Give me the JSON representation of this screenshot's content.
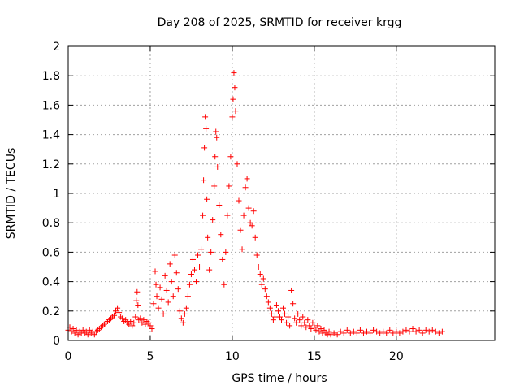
{
  "chart_data": {
    "type": "scatter",
    "title": "Day 208 of 2025, SRMTID for receiver krgg",
    "xlabel": "GPS time / hours",
    "ylabel": "SRMTID / TECUs",
    "xlim": [
      0,
      26
    ],
    "ylim": [
      0,
      2
    ],
    "xticks": [
      0,
      5,
      10,
      15,
      20
    ],
    "yticks": [
      0,
      0.2,
      0.4,
      0.6,
      0.8,
      1,
      1.2,
      1.4,
      1.6,
      1.8,
      2
    ],
    "ytick_labels": [
      "0",
      "0.2",
      "0.4",
      "0.6",
      "0.8",
      "1",
      "1.2",
      "1.4",
      "1.6",
      "1.8",
      "2"
    ],
    "xtick_labels": [
      "0",
      "5",
      "10",
      "15",
      "20"
    ],
    "grid": true,
    "marker": "+",
    "series": [
      {
        "name": "SRMTID",
        "color": "#ff0000",
        "points": [
          [
            0.0,
            0.07
          ],
          [
            0.1,
            0.09
          ],
          [
            0.2,
            0.06
          ],
          [
            0.3,
            0.08
          ],
          [
            0.4,
            0.05
          ],
          [
            0.5,
            0.07
          ],
          [
            0.6,
            0.04
          ],
          [
            0.7,
            0.06
          ],
          [
            0.8,
            0.05
          ],
          [
            0.9,
            0.07
          ],
          [
            1.0,
            0.05
          ],
          [
            1.1,
            0.06
          ],
          [
            1.2,
            0.04
          ],
          [
            1.3,
            0.07
          ],
          [
            1.4,
            0.05
          ],
          [
            1.5,
            0.06
          ],
          [
            1.6,
            0.04
          ],
          [
            1.7,
            0.06
          ],
          [
            1.8,
            0.07
          ],
          [
            1.9,
            0.08
          ],
          [
            2.0,
            0.09
          ],
          [
            2.1,
            0.1
          ],
          [
            2.2,
            0.11
          ],
          [
            2.3,
            0.12
          ],
          [
            2.4,
            0.13
          ],
          [
            2.5,
            0.14
          ],
          [
            2.6,
            0.15
          ],
          [
            2.7,
            0.16
          ],
          [
            2.8,
            0.17
          ],
          [
            2.9,
            0.2
          ],
          [
            3.0,
            0.22
          ],
          [
            3.1,
            0.19
          ],
          [
            3.2,
            0.16
          ],
          [
            3.3,
            0.15
          ],
          [
            3.4,
            0.13
          ],
          [
            3.5,
            0.14
          ],
          [
            3.6,
            0.12
          ],
          [
            3.7,
            0.11
          ],
          [
            3.8,
            0.13
          ],
          [
            3.9,
            0.1
          ],
          [
            4.0,
            0.12
          ],
          [
            4.1,
            0.16
          ],
          [
            4.15,
            0.27
          ],
          [
            4.2,
            0.33
          ],
          [
            4.25,
            0.24
          ],
          [
            4.3,
            0.14
          ],
          [
            4.4,
            0.15
          ],
          [
            4.5,
            0.12
          ],
          [
            4.6,
            0.14
          ],
          [
            4.7,
            0.11
          ],
          [
            4.8,
            0.13
          ],
          [
            4.9,
            0.12
          ],
          [
            5.0,
            0.1
          ],
          [
            5.1,
            0.08
          ],
          [
            5.2,
            0.25
          ],
          [
            5.3,
            0.47
          ],
          [
            5.35,
            0.38
          ],
          [
            5.4,
            0.3
          ],
          [
            5.5,
            0.22
          ],
          [
            5.6,
            0.36
          ],
          [
            5.7,
            0.28
          ],
          [
            5.8,
            0.18
          ],
          [
            5.9,
            0.44
          ],
          [
            6.0,
            0.34
          ],
          [
            6.1,
            0.26
          ],
          [
            6.2,
            0.52
          ],
          [
            6.3,
            0.4
          ],
          [
            6.4,
            0.3
          ],
          [
            6.5,
            0.58
          ],
          [
            6.6,
            0.46
          ],
          [
            6.7,
            0.35
          ],
          [
            6.8,
            0.2
          ],
          [
            6.9,
            0.15
          ],
          [
            7.0,
            0.12
          ],
          [
            7.1,
            0.18
          ],
          [
            7.2,
            0.22
          ],
          [
            7.3,
            0.3
          ],
          [
            7.4,
            0.38
          ],
          [
            7.5,
            0.45
          ],
          [
            7.6,
            0.55
          ],
          [
            7.7,
            0.48
          ],
          [
            7.8,
            0.4
          ],
          [
            7.9,
            0.58
          ],
          [
            8.0,
            0.5
          ],
          [
            8.1,
            0.62
          ],
          [
            8.2,
            0.85
          ],
          [
            8.25,
            1.09
          ],
          [
            8.3,
            1.31
          ],
          [
            8.35,
            1.52
          ],
          [
            8.4,
            1.44
          ],
          [
            8.45,
            0.96
          ],
          [
            8.5,
            0.7
          ],
          [
            8.6,
            0.48
          ],
          [
            8.7,
            0.6
          ],
          [
            8.8,
            0.82
          ],
          [
            8.9,
            1.05
          ],
          [
            8.95,
            1.25
          ],
          [
            9.0,
            1.42
          ],
          [
            9.05,
            1.38
          ],
          [
            9.1,
            1.18
          ],
          [
            9.2,
            0.92
          ],
          [
            9.3,
            0.72
          ],
          [
            9.4,
            0.55
          ],
          [
            9.5,
            0.38
          ],
          [
            9.6,
            0.6
          ],
          [
            9.7,
            0.85
          ],
          [
            9.8,
            1.05
          ],
          [
            9.9,
            1.25
          ],
          [
            10.0,
            1.52
          ],
          [
            10.05,
            1.64
          ],
          [
            10.1,
            1.82
          ],
          [
            10.15,
            1.72
          ],
          [
            10.2,
            1.56
          ],
          [
            10.3,
            1.2
          ],
          [
            10.4,
            0.95
          ],
          [
            10.5,
            0.75
          ],
          [
            10.6,
            0.62
          ],
          [
            10.7,
            0.85
          ],
          [
            10.8,
            1.04
          ],
          [
            10.9,
            1.1
          ],
          [
            11.0,
            0.9
          ],
          [
            11.1,
            0.8
          ],
          [
            11.2,
            0.78
          ],
          [
            11.3,
            0.88
          ],
          [
            11.4,
            0.7
          ],
          [
            11.5,
            0.58
          ],
          [
            11.6,
            0.5
          ],
          [
            11.7,
            0.45
          ],
          [
            11.8,
            0.38
          ],
          [
            11.9,
            0.42
          ],
          [
            12.0,
            0.35
          ],
          [
            12.1,
            0.3
          ],
          [
            12.2,
            0.26
          ],
          [
            12.3,
            0.22
          ],
          [
            12.4,
            0.18
          ],
          [
            12.5,
            0.14
          ],
          [
            12.6,
            0.16
          ],
          [
            12.7,
            0.24
          ],
          [
            12.8,
            0.2
          ],
          [
            12.9,
            0.16
          ],
          [
            13.0,
            0.14
          ],
          [
            13.1,
            0.22
          ],
          [
            13.2,
            0.18
          ],
          [
            13.3,
            0.12
          ],
          [
            13.4,
            0.16
          ],
          [
            13.5,
            0.1
          ],
          [
            13.6,
            0.34
          ],
          [
            13.7,
            0.25
          ],
          [
            13.8,
            0.15
          ],
          [
            13.9,
            0.12
          ],
          [
            14.0,
            0.18
          ],
          [
            14.1,
            0.14
          ],
          [
            14.2,
            0.1
          ],
          [
            14.3,
            0.16
          ],
          [
            14.4,
            0.12
          ],
          [
            14.5,
            0.09
          ],
          [
            14.6,
            0.14
          ],
          [
            14.7,
            0.1
          ],
          [
            14.8,
            0.08
          ],
          [
            14.9,
            0.12
          ],
          [
            15.0,
            0.09
          ],
          [
            15.1,
            0.07
          ],
          [
            15.2,
            0.1
          ],
          [
            15.3,
            0.06
          ],
          [
            15.4,
            0.08
          ],
          [
            15.5,
            0.05
          ],
          [
            15.6,
            0.07
          ],
          [
            15.7,
            0.05
          ],
          [
            15.8,
            0.04
          ],
          [
            15.9,
            0.06
          ],
          [
            16.0,
            0.04
          ],
          [
            16.2,
            0.05
          ],
          [
            16.4,
            0.04
          ],
          [
            16.6,
            0.06
          ],
          [
            16.8,
            0.05
          ],
          [
            17.0,
            0.07
          ],
          [
            17.2,
            0.05
          ],
          [
            17.4,
            0.06
          ],
          [
            17.6,
            0.05
          ],
          [
            17.8,
            0.07
          ],
          [
            18.0,
            0.05
          ],
          [
            18.2,
            0.06
          ],
          [
            18.4,
            0.05
          ],
          [
            18.6,
            0.07
          ],
          [
            18.8,
            0.06
          ],
          [
            19.0,
            0.05
          ],
          [
            19.2,
            0.06
          ],
          [
            19.4,
            0.05
          ],
          [
            19.6,
            0.07
          ],
          [
            19.8,
            0.05
          ],
          [
            20.0,
            0.06
          ],
          [
            20.2,
            0.05
          ],
          [
            20.4,
            0.06
          ],
          [
            20.6,
            0.07
          ],
          [
            20.8,
            0.06
          ],
          [
            21.0,
            0.08
          ],
          [
            21.2,
            0.06
          ],
          [
            21.4,
            0.07
          ],
          [
            21.6,
            0.05
          ],
          [
            21.8,
            0.07
          ],
          [
            22.0,
            0.06
          ],
          [
            22.2,
            0.07
          ],
          [
            22.4,
            0.06
          ],
          [
            22.6,
            0.05
          ],
          [
            22.8,
            0.06
          ]
        ]
      }
    ]
  }
}
